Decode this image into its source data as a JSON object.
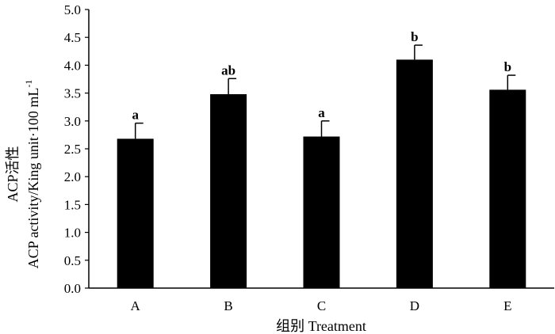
{
  "chart_data": {
    "type": "bar",
    "categories": [
      "A",
      "B",
      "C",
      "D",
      "E"
    ],
    "values": [
      2.68,
      3.48,
      2.72,
      4.1,
      3.56
    ],
    "errors": [
      0.28,
      0.28,
      0.28,
      0.26,
      0.26
    ],
    "significance": [
      "a",
      "ab",
      "a",
      "b",
      "b"
    ],
    "xlabel": "组别 Treatment",
    "ylabel_line1": "ACP活性",
    "ylabel_line2": "ACP activity/King unit·100 mL",
    "ylabel_sup": "-1",
    "ylim": [
      0,
      5
    ],
    "ytick_step": 0.5,
    "ytick_labels": [
      "0.0",
      "0.5",
      "1.0",
      "1.5",
      "2.0",
      "2.5",
      "3.0",
      "3.5",
      "4.0",
      "4.5",
      "5.0"
    ],
    "grid": false,
    "bar_color": "#000000"
  }
}
